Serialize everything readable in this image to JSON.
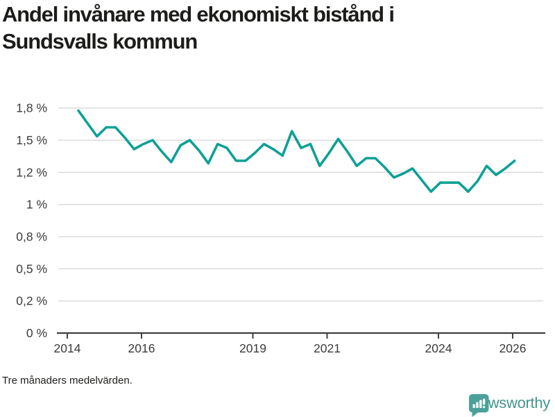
{
  "header": {
    "title_lines": [
      "Andel invånare med ekonomiskt bistånd i",
      "Sundsvalls kommun"
    ],
    "title_full": "Andel invånare med ekonomiskt bistånd i Sundsvalls kommun"
  },
  "footer": {
    "note": "Tre månaders medelvärden.",
    "brand": "Newsworthy"
  },
  "colors": {
    "line": "#0da096",
    "gridline": "#d9d9d9",
    "axis": "#3f3f3f",
    "tick_label": "#3b3b3b",
    "brand_teal": "#45968d",
    "logo_fill": "#4ba19a",
    "title_text": "#1c1c1a"
  },
  "chart_data": {
    "type": "line",
    "title": "Andel invånare med ekonomiskt bistånd i Sundsvalls kommun",
    "subtitle_note": "Tre månaders medelvärden.",
    "unit": "%",
    "xlabel": "",
    "ylabel": "",
    "grid": "horizontal",
    "legend": "none",
    "line_color": "#0da096",
    "ylim": [
      0,
      1.75
    ],
    "xlim": [
      2013.72,
      2026.8
    ],
    "y_ticks": [
      {
        "value": 0,
        "label": "0 %"
      },
      {
        "value": 0.25,
        "label": "0,2 %"
      },
      {
        "value": 0.5,
        "label": "0,5 %"
      },
      {
        "value": 0.75,
        "label": "0,8 %"
      },
      {
        "value": 1,
        "label": "1 %"
      },
      {
        "value": 1.25,
        "label": "1,2 %"
      },
      {
        "value": 1.5,
        "label": "1,5 %"
      },
      {
        "value": 1.75,
        "label": "1,8 %"
      }
    ],
    "x_ticks": [
      {
        "value": 2014,
        "label": "2014"
      },
      {
        "value": 2016,
        "label": "2016"
      },
      {
        "value": 2019,
        "label": "2019"
      },
      {
        "value": 2021,
        "label": "2021"
      },
      {
        "value": 2024,
        "label": "2024"
      },
      {
        "value": 2026,
        "label": "2026"
      }
    ],
    "x": [
      2014.3,
      2014.55,
      2014.8,
      2015.05,
      2015.3,
      2015.55,
      2015.8,
      2016.05,
      2016.3,
      2016.55,
      2016.8,
      2017.05,
      2017.3,
      2017.55,
      2017.8,
      2018.05,
      2018.3,
      2018.55,
      2018.8,
      2019.05,
      2019.3,
      2019.55,
      2019.8,
      2020.05,
      2020.3,
      2020.55,
      2020.8,
      2021.05,
      2021.3,
      2021.55,
      2021.8,
      2022.05,
      2022.3,
      2022.55,
      2022.8,
      2023.05,
      2023.3,
      2023.55,
      2023.8,
      2024.05,
      2024.3,
      2024.55,
      2024.8,
      2025.05,
      2025.3,
      2025.55,
      2025.8,
      2026.05
    ],
    "values": [
      1.73,
      1.63,
      1.53,
      1.6,
      1.6,
      1.52,
      1.43,
      1.47,
      1.5,
      1.41,
      1.33,
      1.46,
      1.5,
      1.42,
      1.32,
      1.47,
      1.44,
      1.34,
      1.34,
      1.4,
      1.47,
      1.43,
      1.38,
      1.57,
      1.44,
      1.47,
      1.3,
      1.4,
      1.51,
      1.41,
      1.3,
      1.36,
      1.36,
      1.29,
      1.21,
      1.24,
      1.28,
      1.19,
      1.1,
      1.17,
      1.17,
      1.17,
      1.1,
      1.18,
      1.3,
      1.23,
      1.28,
      1.34
    ]
  }
}
